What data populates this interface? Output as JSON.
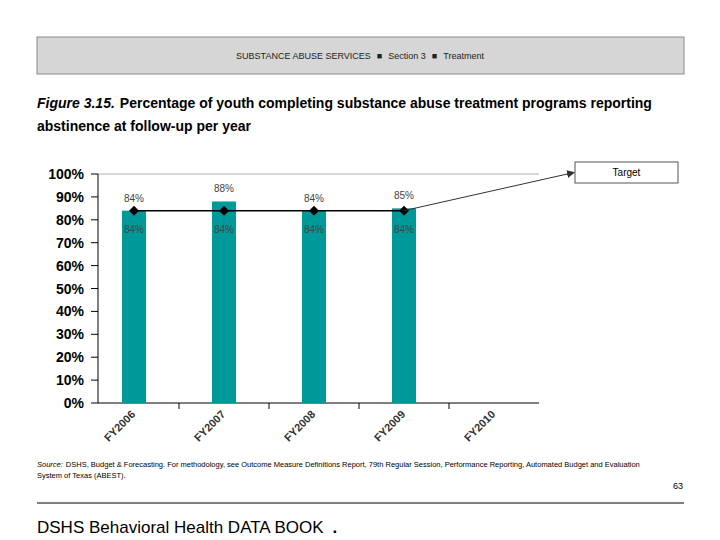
{
  "page": {
    "header": [
      "SUBSTANCE ABUSE SERVICES",
      "■",
      "Section 3",
      "■",
      "Treatment"
    ],
    "figure_number": "Figure 3.15.",
    "source_label": "Source:",
    "source": "DSHS, Budget & Forecasting. For methodology, see Outcome Measure Definitions Report, 79th Regular Session, Performance Reporting, Automated Budget and Evaluation System of Texas (ABEST).",
    "footer": "DSHS Behavioral Health DATA BOOK",
    "footer_mark": ".",
    "page_number": "63"
  },
  "chart_data": {
    "type": "bar",
    "title": "Percentage of youth completing substance abuse treatment programs reporting abstinence at follow-up per year",
    "categories": [
      "FY2006",
      "FY2007",
      "FY2008",
      "FY2009",
      "FY2010"
    ],
    "series": [
      {
        "type": "bar",
        "color": "#009999",
        "values": [
          84,
          88,
          84,
          85,
          null
        ],
        "value_labels": [
          "84%",
          "88%",
          "84%",
          "85%",
          null
        ]
      },
      {
        "name": "Target",
        "type": "line",
        "color": "#000000",
        "marker": "diamond",
        "values": [
          84,
          84,
          84,
          84,
          null
        ],
        "value_labels": [
          "84%",
          "84%",
          "84%",
          "84%",
          null
        ]
      }
    ],
    "ylim": [
      0,
      100
    ],
    "yticks": [
      {
        "value": 0,
        "label": "0%"
      },
      {
        "value": 10,
        "label": "10%"
      },
      {
        "value": 20,
        "label": "20%"
      },
      {
        "value": 30,
        "label": "30%"
      },
      {
        "value": 40,
        "label": "40%"
      },
      {
        "value": 50,
        "label": "50%"
      },
      {
        "value": 60,
        "label": "60%"
      },
      {
        "value": 70,
        "label": "70%"
      },
      {
        "value": 80,
        "label": "80%"
      },
      {
        "value": 90,
        "label": "90%"
      },
      {
        "value": 100,
        "label": "100%"
      }
    ],
    "grid": false,
    "legend": "upper right",
    "data_labels": true
  }
}
